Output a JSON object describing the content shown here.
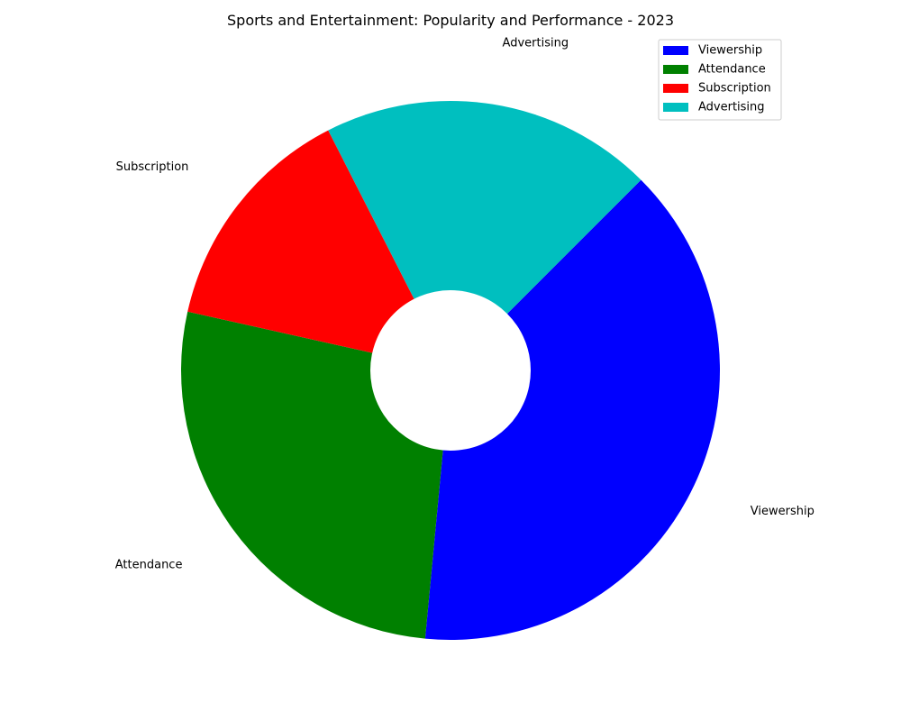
{
  "chart_data": {
    "type": "pie",
    "style": "donut",
    "title": "Sports and Entertainment: Popularity and Performance - 2023",
    "categories": [
      "Viewership",
      "Attendance",
      "Subscription",
      "Advertising"
    ],
    "values": [
      39,
      27,
      14,
      20
    ],
    "colors": [
      "#0000ff",
      "#008000",
      "#ff0000",
      "#00bfbf"
    ],
    "start_angle_deg": 45,
    "direction": "clockwise",
    "legend": {
      "position": "top-right",
      "entries": [
        "Viewership",
        "Attendance",
        "Subscription",
        "Advertising"
      ]
    }
  }
}
